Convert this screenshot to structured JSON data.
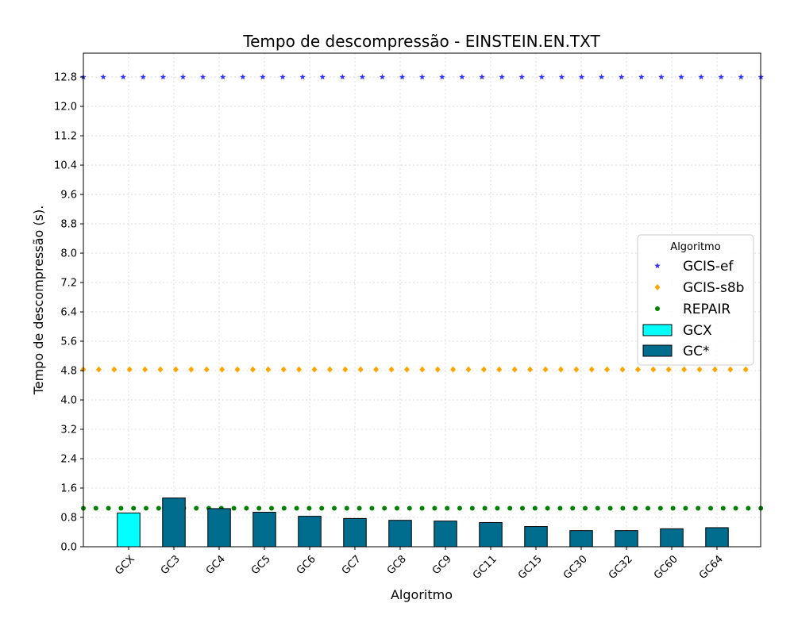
{
  "chart_data": {
    "type": "bar",
    "title": "Tempo de descompressão -  EINSTEIN.EN.TXT",
    "xlabel": "Algoritmo",
    "ylabel": "Tempo de descompressão (s).",
    "categories": [
      "GCX",
      "GC3",
      "GC4",
      "GC5",
      "GC6",
      "GC7",
      "GC8",
      "GC9",
      "GC11",
      "GC15",
      "GC30",
      "GC32",
      "GC60",
      "GC64"
    ],
    "series": [
      {
        "name": "GCX",
        "color": "#00ffff",
        "values": [
          0.92,
          null,
          null,
          null,
          null,
          null,
          null,
          null,
          null,
          null,
          null,
          null,
          null,
          null
        ]
      },
      {
        "name": "GC*",
        "color": "#006d8f",
        "values": [
          null,
          1.33,
          1.04,
          0.94,
          0.83,
          0.77,
          0.72,
          0.7,
          0.66,
          0.55,
          0.44,
          0.44,
          0.49,
          0.52
        ]
      }
    ],
    "reference_lines": [
      {
        "name": "GCIS-ef",
        "value": 12.8,
        "color": "#3333ff",
        "marker": "star"
      },
      {
        "name": "GCIS-s8b",
        "value": 4.83,
        "color": "#ffa500",
        "marker": "diamond"
      },
      {
        "name": "REPAIR",
        "value": 1.05,
        "color": "#008000",
        "marker": "circle"
      }
    ],
    "yticks": [
      0.0,
      0.8,
      1.6,
      2.4,
      3.2,
      4.0,
      4.8,
      5.6,
      6.4,
      7.2,
      8.0,
      8.8,
      9.6,
      10.4,
      11.2,
      12.0,
      12.8
    ],
    "ytick_labels": [
      "0.0",
      "0.8",
      "1.6",
      "2.4",
      "3.2",
      "4.0",
      "4.8",
      "5.6",
      "6.4",
      "7.2",
      "8.0",
      "8.8",
      "9.6",
      "10.4",
      "11.2",
      "12.0",
      "12.8"
    ],
    "ylim": [
      0,
      13.45
    ],
    "grid": true,
    "legend": {
      "title": "Algoritmo",
      "placement": "center-right",
      "entries": [
        "GCIS-ef",
        "GCIS-s8b",
        "REPAIR",
        "GCX",
        "GC*"
      ]
    }
  }
}
